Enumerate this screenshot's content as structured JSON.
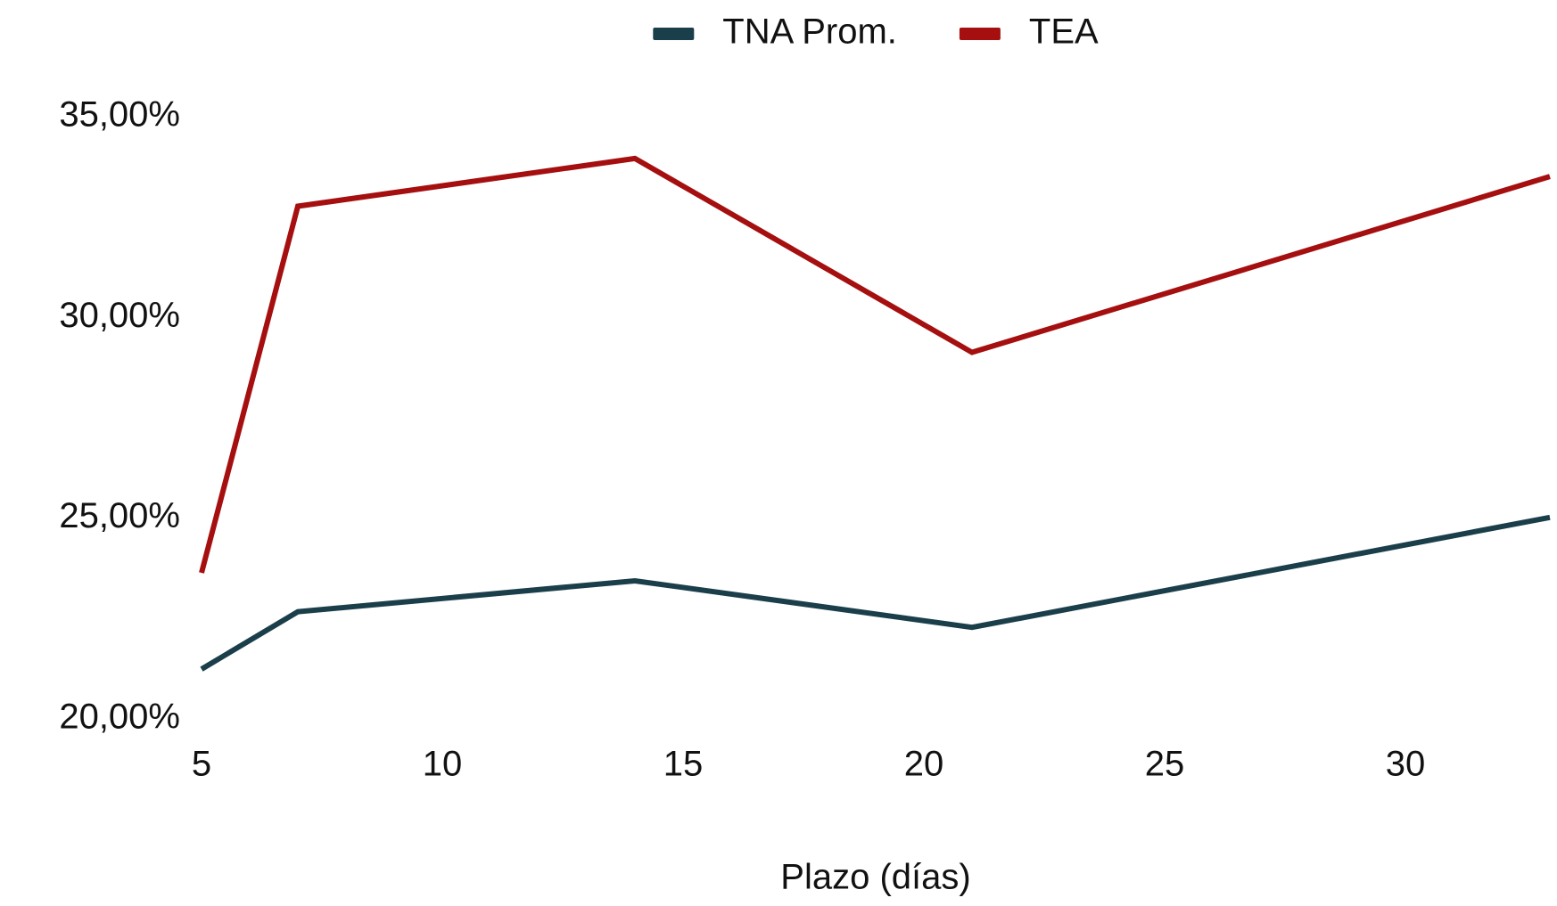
{
  "chart_data": {
    "type": "line",
    "x_label": "Plazo (días)",
    "x": [
      5,
      7,
      14,
      21,
      33
    ],
    "series": [
      {
        "name": "TNA Prom.",
        "color": "#1b3f4a",
        "values": [
          21.24,
          22.67,
          23.44,
          22.28,
          25.02
        ]
      },
      {
        "name": "TEA",
        "color": "#a50f0f",
        "values": [
          23.64,
          32.77,
          33.96,
          29.13,
          33.51
        ]
      }
    ],
    "xlim": [
      5,
      33
    ],
    "xticks": [
      5,
      10,
      15,
      20,
      25,
      30
    ],
    "ylim": [
      20,
      35
    ],
    "yticks": [
      {
        "value": 20,
        "label": "20,00%"
      },
      {
        "value": 25,
        "label": "25,00%"
      },
      {
        "value": 30,
        "label": "30,00%"
      },
      {
        "value": 35,
        "label": "35,00%"
      }
    ],
    "legend": "top",
    "grid": false
  }
}
